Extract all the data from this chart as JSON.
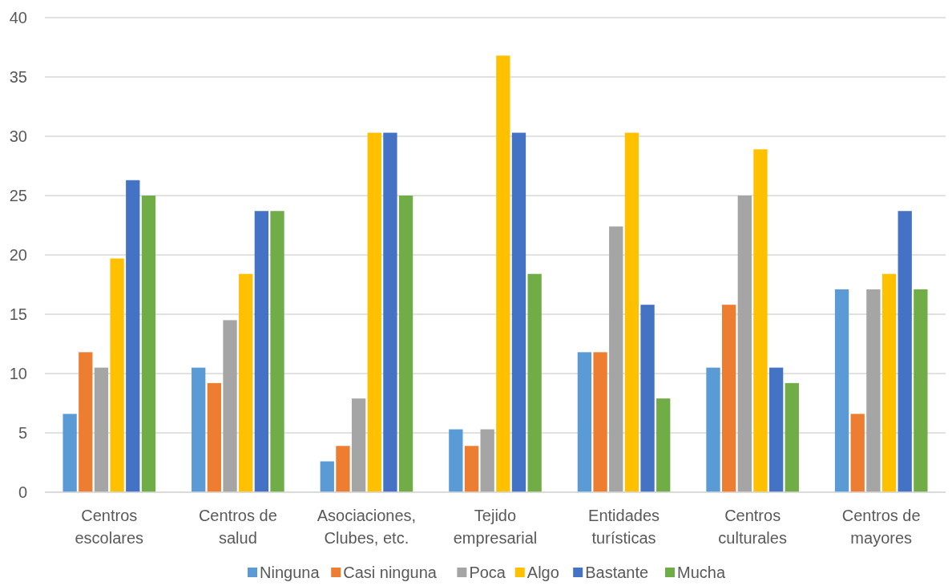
{
  "chart_data": {
    "type": "bar",
    "categories": [
      "Centros escolares",
      "Centros de salud",
      "Asociaciones, Clubes, etc.",
      "Tejido empresarial",
      "Entidades turísticas",
      "Centros culturales",
      "Centros de mayores"
    ],
    "series": [
      {
        "name": "Ninguna",
        "color": "#5b9bd5",
        "values": [
          6.6,
          10.5,
          2.6,
          5.3,
          11.8,
          10.5,
          17.1
        ]
      },
      {
        "name": "Casi ninguna",
        "color": "#ed7d31",
        "values": [
          11.8,
          9.2,
          3.9,
          3.9,
          11.8,
          15.8,
          6.6
        ]
      },
      {
        "name": "Poca",
        "color": "#a5a5a5",
        "values": [
          10.5,
          14.5,
          7.9,
          5.3,
          22.4,
          25,
          17.1
        ]
      },
      {
        "name": "Algo",
        "color": "#ffc000",
        "values": [
          19.7,
          18.4,
          30.3,
          36.8,
          30.3,
          28.9,
          18.4
        ]
      },
      {
        "name": "Bastante",
        "color": "#4472c4",
        "values": [
          26.3,
          23.7,
          30.3,
          30.3,
          15.8,
          10.5,
          23.7
        ]
      },
      {
        "name": "Mucha",
        "color": "#70ad47",
        "values": [
          25,
          23.7,
          25,
          18.4,
          7.9,
          9.2,
          17.1
        ]
      }
    ],
    "ylim": [
      0,
      40
    ],
    "yticks": [
      0,
      5,
      10,
      15,
      20,
      25,
      30,
      35,
      40
    ],
    "grid": "y",
    "legend": "bottom"
  }
}
